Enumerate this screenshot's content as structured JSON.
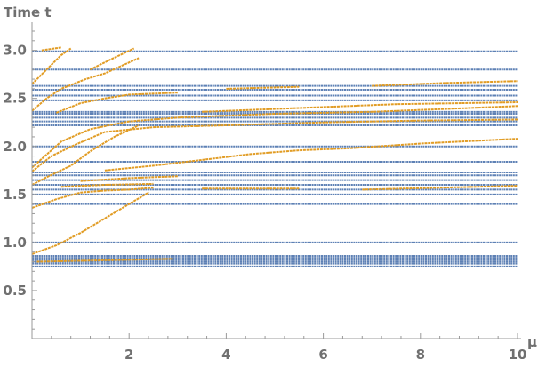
{
  "chart_data": {
    "type": "line",
    "title": "",
    "xlabel": "μ",
    "ylabel": "Time t",
    "xlim": [
      0,
      10
    ],
    "ylim": [
      0,
      3.2
    ],
    "x_ticks": [
      {
        "value": 2,
        "label": "2"
      },
      {
        "value": 4,
        "label": "4"
      },
      {
        "value": 6,
        "label": "6"
      },
      {
        "value": 8,
        "label": "8"
      },
      {
        "value": 10,
        "label": "10"
      }
    ],
    "y_ticks": [
      {
        "value": 0.5,
        "label": "0.5"
      },
      {
        "value": 1.0,
        "label": "1.0"
      },
      {
        "value": 1.5,
        "label": "1.5"
      },
      {
        "value": 2.0,
        "label": "2.0"
      },
      {
        "value": 2.5,
        "label": "2.5"
      },
      {
        "value": 3.0,
        "label": "3.0"
      }
    ],
    "grid": false,
    "legend": "none",
    "colors": {
      "blue": "#5e81b5",
      "orange": "#e19c24"
    },
    "series": [
      {
        "color": "blue",
        "levels": [
          0.75,
          0.78,
          0.8,
          0.82,
          0.84,
          0.86,
          1.0,
          1.4,
          1.5,
          1.55,
          1.6,
          1.65,
          1.7,
          1.73,
          1.84,
          2.0,
          2.22,
          2.26,
          2.3,
          2.34,
          2.36,
          2.48,
          2.53,
          2.59,
          2.63,
          2.8,
          2.99
        ],
        "x_range": [
          0,
          10
        ]
      },
      {
        "color": "orange",
        "segments": [
          [
            [
              0.1,
              0.8
            ],
            [
              2.9,
              0.83
            ]
          ],
          [
            [
              0.0,
              0.88
            ],
            [
              0.5,
              0.97
            ],
            [
              1.0,
              1.1
            ],
            [
              1.5,
              1.25
            ],
            [
              2.0,
              1.4
            ],
            [
              2.4,
              1.52
            ]
          ],
          [
            [
              0.0,
              1.36
            ],
            [
              0.5,
              1.45
            ],
            [
              1.0,
              1.52
            ],
            [
              1.5,
              1.54
            ],
            [
              2.0,
              1.55
            ],
            [
              2.5,
              1.57
            ]
          ],
          [
            [
              0.6,
              1.58
            ],
            [
              1.5,
              1.6
            ],
            [
              2.5,
              1.61
            ]
          ],
          [
            [
              1.0,
              1.64
            ],
            [
              2.0,
              1.67
            ],
            [
              3.0,
              1.69
            ]
          ],
          [
            [
              3.5,
              1.56
            ],
            [
              5.5,
              1.56
            ]
          ],
          [
            [
              6.8,
              1.55
            ],
            [
              10.0,
              1.59
            ]
          ],
          [
            [
              0.0,
              1.6
            ],
            [
              0.3,
              1.68
            ],
            [
              0.8,
              1.8
            ],
            [
              1.2,
              1.95
            ],
            [
              1.7,
              2.1
            ],
            [
              2.2,
              2.22
            ]
          ],
          [
            [
              0.0,
              1.74
            ],
            [
              0.4,
              1.9
            ],
            [
              0.9,
              2.02
            ],
            [
              1.5,
              2.15
            ],
            [
              2.5,
              2.2
            ]
          ],
          [
            [
              0.0,
              1.78
            ],
            [
              0.6,
              2.05
            ],
            [
              1.2,
              2.18
            ],
            [
              2.0,
              2.26
            ],
            [
              3.0,
              2.3
            ]
          ],
          [
            [
              1.5,
              1.75
            ],
            [
              2.5,
              1.8
            ],
            [
              3.5,
              1.86
            ],
            [
              4.5,
              1.92
            ],
            [
              5.5,
              1.96
            ],
            [
              6.5,
              1.98
            ],
            [
              8.0,
              2.03
            ],
            [
              10.0,
              2.08
            ]
          ],
          [
            [
              2.5,
              2.2
            ],
            [
              4.0,
              2.22
            ],
            [
              6.0,
              2.25
            ],
            [
              8.0,
              2.27
            ],
            [
              10.0,
              2.28
            ]
          ],
          [
            [
              3.0,
              2.3
            ],
            [
              5.0,
              2.34
            ],
            [
              7.0,
              2.36
            ],
            [
              8.5,
              2.39
            ],
            [
              10.0,
              2.42
            ]
          ],
          [
            [
              3.5,
              2.36
            ],
            [
              5.5,
              2.4
            ],
            [
              7.5,
              2.44
            ],
            [
              10.0,
              2.46
            ]
          ],
          [
            [
              0.5,
              2.35
            ],
            [
              1.0,
              2.45
            ],
            [
              1.5,
              2.5
            ],
            [
              2.0,
              2.54
            ],
            [
              3.0,
              2.56
            ]
          ],
          [
            [
              4.0,
              2.6
            ],
            [
              5.5,
              2.62
            ]
          ],
          [
            [
              7.0,
              2.63
            ],
            [
              8.5,
              2.66
            ],
            [
              10.0,
              2.68
            ]
          ],
          [
            [
              0.0,
              2.37
            ],
            [
              0.3,
              2.5
            ],
            [
              0.6,
              2.6
            ],
            [
              1.1,
              2.7
            ],
            [
              1.5,
              2.76
            ],
            [
              2.2,
              2.92
            ]
          ],
          [
            [
              0.0,
              2.65
            ],
            [
              0.3,
              2.8
            ],
            [
              0.6,
              2.95
            ],
            [
              0.8,
              3.02
            ]
          ],
          [
            [
              1.2,
              2.8
            ],
            [
              1.6,
              2.9
            ],
            [
              2.1,
              3.02
            ]
          ],
          [
            [
              0.2,
              3.0
            ],
            [
              0.6,
              3.03
            ]
          ]
        ]
      }
    ]
  }
}
